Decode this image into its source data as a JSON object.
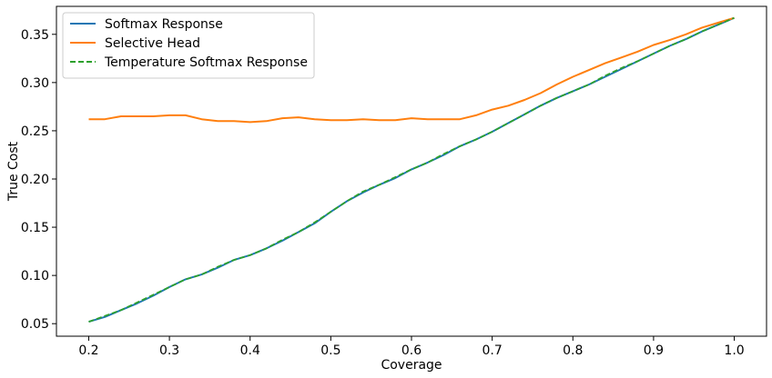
{
  "chart_data": {
    "type": "line",
    "title": "",
    "xlabel": "Coverage",
    "ylabel": "True Cost",
    "xlim": [
      0.16,
      1.04
    ],
    "ylim": [
      0.037,
      0.379
    ],
    "xticks": [
      0.2,
      0.3,
      0.4,
      0.5,
      0.6,
      0.7,
      0.8,
      0.9,
      1.0
    ],
    "xtick_labels": [
      "0.2",
      "0.3",
      "0.4",
      "0.5",
      "0.6",
      "0.7",
      "0.8",
      "0.9",
      "1.0"
    ],
    "yticks": [
      0.05,
      0.1,
      0.15,
      0.2,
      0.25,
      0.3,
      0.35
    ],
    "ytick_labels": [
      "0.05",
      "0.10",
      "0.15",
      "0.20",
      "0.25",
      "0.30",
      "0.35"
    ],
    "grid": false,
    "legend_position": "top-left",
    "series": [
      {
        "name": "Softmax Response",
        "color": "#1f77b4",
        "style": "solid",
        "x": [
          0.2,
          0.22,
          0.24,
          0.26,
          0.28,
          0.3,
          0.32,
          0.34,
          0.36,
          0.38,
          0.4,
          0.42,
          0.44,
          0.46,
          0.48,
          0.5,
          0.52,
          0.54,
          0.56,
          0.58,
          0.6,
          0.62,
          0.64,
          0.66,
          0.68,
          0.7,
          0.72,
          0.74,
          0.76,
          0.78,
          0.8,
          0.82,
          0.84,
          0.86,
          0.88,
          0.9,
          0.92,
          0.94,
          0.96,
          0.98,
          1.0
        ],
        "y": [
          0.052,
          0.057,
          0.064,
          0.071,
          0.079,
          0.088,
          0.096,
          0.101,
          0.108,
          0.116,
          0.121,
          0.128,
          0.136,
          0.145,
          0.154,
          0.166,
          0.177,
          0.186,
          0.194,
          0.201,
          0.21,
          0.217,
          0.225,
          0.234,
          0.241,
          0.249,
          0.258,
          0.267,
          0.276,
          0.284,
          0.291,
          0.298,
          0.306,
          0.314,
          0.322,
          0.33,
          0.338,
          0.345,
          0.353,
          0.36,
          0.367
        ]
      },
      {
        "name": "Selective Head",
        "color": "#ff7f0e",
        "style": "solid",
        "x": [
          0.2,
          0.22,
          0.24,
          0.26,
          0.28,
          0.3,
          0.32,
          0.34,
          0.36,
          0.38,
          0.4,
          0.42,
          0.44,
          0.46,
          0.48,
          0.5,
          0.52,
          0.54,
          0.56,
          0.58,
          0.6,
          0.62,
          0.64,
          0.66,
          0.68,
          0.7,
          0.72,
          0.74,
          0.76,
          0.78,
          0.8,
          0.82,
          0.84,
          0.86,
          0.88,
          0.9,
          0.92,
          0.94,
          0.96,
          0.98,
          1.0
        ],
        "y": [
          0.262,
          0.262,
          0.265,
          0.265,
          0.265,
          0.266,
          0.266,
          0.262,
          0.26,
          0.26,
          0.259,
          0.26,
          0.263,
          0.264,
          0.262,
          0.261,
          0.261,
          0.262,
          0.261,
          0.261,
          0.263,
          0.262,
          0.262,
          0.262,
          0.266,
          0.272,
          0.276,
          0.282,
          0.289,
          0.298,
          0.306,
          0.313,
          0.32,
          0.326,
          0.332,
          0.339,
          0.344,
          0.35,
          0.357,
          0.362,
          0.367
        ]
      },
      {
        "name": "Temperature Softmax Response",
        "color": "#2ca02c",
        "style": "dashed",
        "x": [
          0.2,
          0.22,
          0.24,
          0.26,
          0.28,
          0.3,
          0.32,
          0.34,
          0.36,
          0.38,
          0.4,
          0.42,
          0.44,
          0.46,
          0.48,
          0.5,
          0.52,
          0.54,
          0.56,
          0.58,
          0.6,
          0.62,
          0.64,
          0.66,
          0.68,
          0.7,
          0.72,
          0.74,
          0.76,
          0.78,
          0.8,
          0.82,
          0.84,
          0.86,
          0.88,
          0.9,
          0.92,
          0.94,
          0.96,
          0.98,
          1.0
        ],
        "y": [
          0.052,
          0.058,
          0.064,
          0.072,
          0.08,
          0.088,
          0.096,
          0.101,
          0.109,
          0.116,
          0.121,
          0.128,
          0.137,
          0.145,
          0.155,
          0.166,
          0.177,
          0.187,
          0.194,
          0.202,
          0.21,
          0.217,
          0.226,
          0.234,
          0.241,
          0.249,
          0.258,
          0.267,
          0.276,
          0.284,
          0.291,
          0.298,
          0.307,
          0.315,
          0.322,
          0.33,
          0.338,
          0.345,
          0.353,
          0.36,
          0.367
        ]
      }
    ]
  }
}
